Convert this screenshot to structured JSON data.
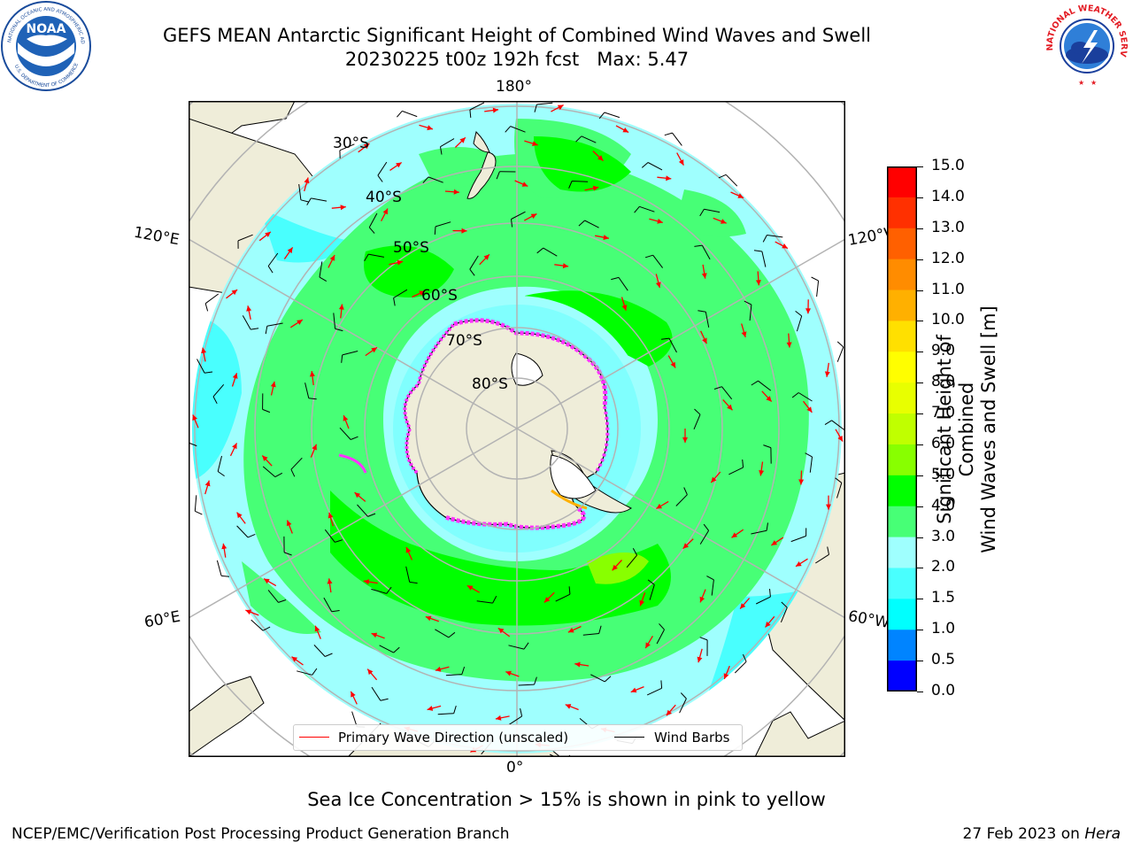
{
  "title": {
    "line1": "GEFS MEAN Antarctic Significant Height of Combined Wind Waves and Swell",
    "line2_run": "20230225 t00z 192h fcst",
    "line2_max": "Max: 5.47"
  },
  "map": {
    "lon_labels": {
      "top": "180°",
      "bottom": "0°",
      "left_upper": "120°E",
      "left_lower": "60°E",
      "right_upper": "120°W",
      "right_lower": "60°W"
    },
    "lat_labels": [
      "30°S",
      "40°S",
      "50°S",
      "60°S",
      "70°S",
      "80°S"
    ],
    "colors": {
      "land": "#efedd9",
      "ocean_1_5_2": "#49fffe",
      "ocean_2_3": "#9ffffe",
      "ocean_3_4": "#47ff76",
      "ocean_4_5": "#00ff00",
      "sea_ice": "#ff33ff",
      "wave_arrow": "#ff0000",
      "wind_barb": "#000000",
      "graticule": "#b3b3b3"
    }
  },
  "legend": {
    "primary_wave": "Primary Wave Direction (unscaled)",
    "wind_barbs": "Wind Barbs"
  },
  "colorbar": {
    "label": "Significant Height of Combined Wind Waves and Swell [m]",
    "label_line1": "Significant Height of Combined",
    "label_line2": "Wind Waves and Swell [m]",
    "ticks": [
      "15.0",
      "14.0",
      "13.0",
      "12.0",
      "11.0",
      "10.0",
      "9.0",
      "8.0",
      "7.0",
      "6.0",
      "5.0",
      "4.0",
      "3.0",
      "2.0",
      "1.5",
      "1.0",
      "0.5",
      "0.0"
    ],
    "colors": [
      "#ff0000",
      "#ff3000",
      "#ff6000",
      "#ff8c00",
      "#ffb000",
      "#ffe000",
      "#fffe00",
      "#e8ff00",
      "#c0ff00",
      "#88ff00",
      "#00ff00",
      "#47ff76",
      "#9ffffe",
      "#49fffe",
      "#00fffe",
      "#0084ff",
      "#0000ff"
    ]
  },
  "caption": "Sea Ice Concentration > 15% is shown in pink to yellow",
  "footer": {
    "left": "NCEP/EMC/Verification Post Processing Product Generation Branch",
    "right_prefix": "27 Feb 2023 on ",
    "right_host": "Hera"
  },
  "logos": {
    "left": "NOAA",
    "left_ring": "NATIONAL OCEANIC AND ATMOSPHERIC ADMINISTRATION",
    "left_ring2": "U.S. DEPARTMENT OF COMMERCE",
    "right_ring": "NATIONAL WEATHER SERVICE"
  }
}
